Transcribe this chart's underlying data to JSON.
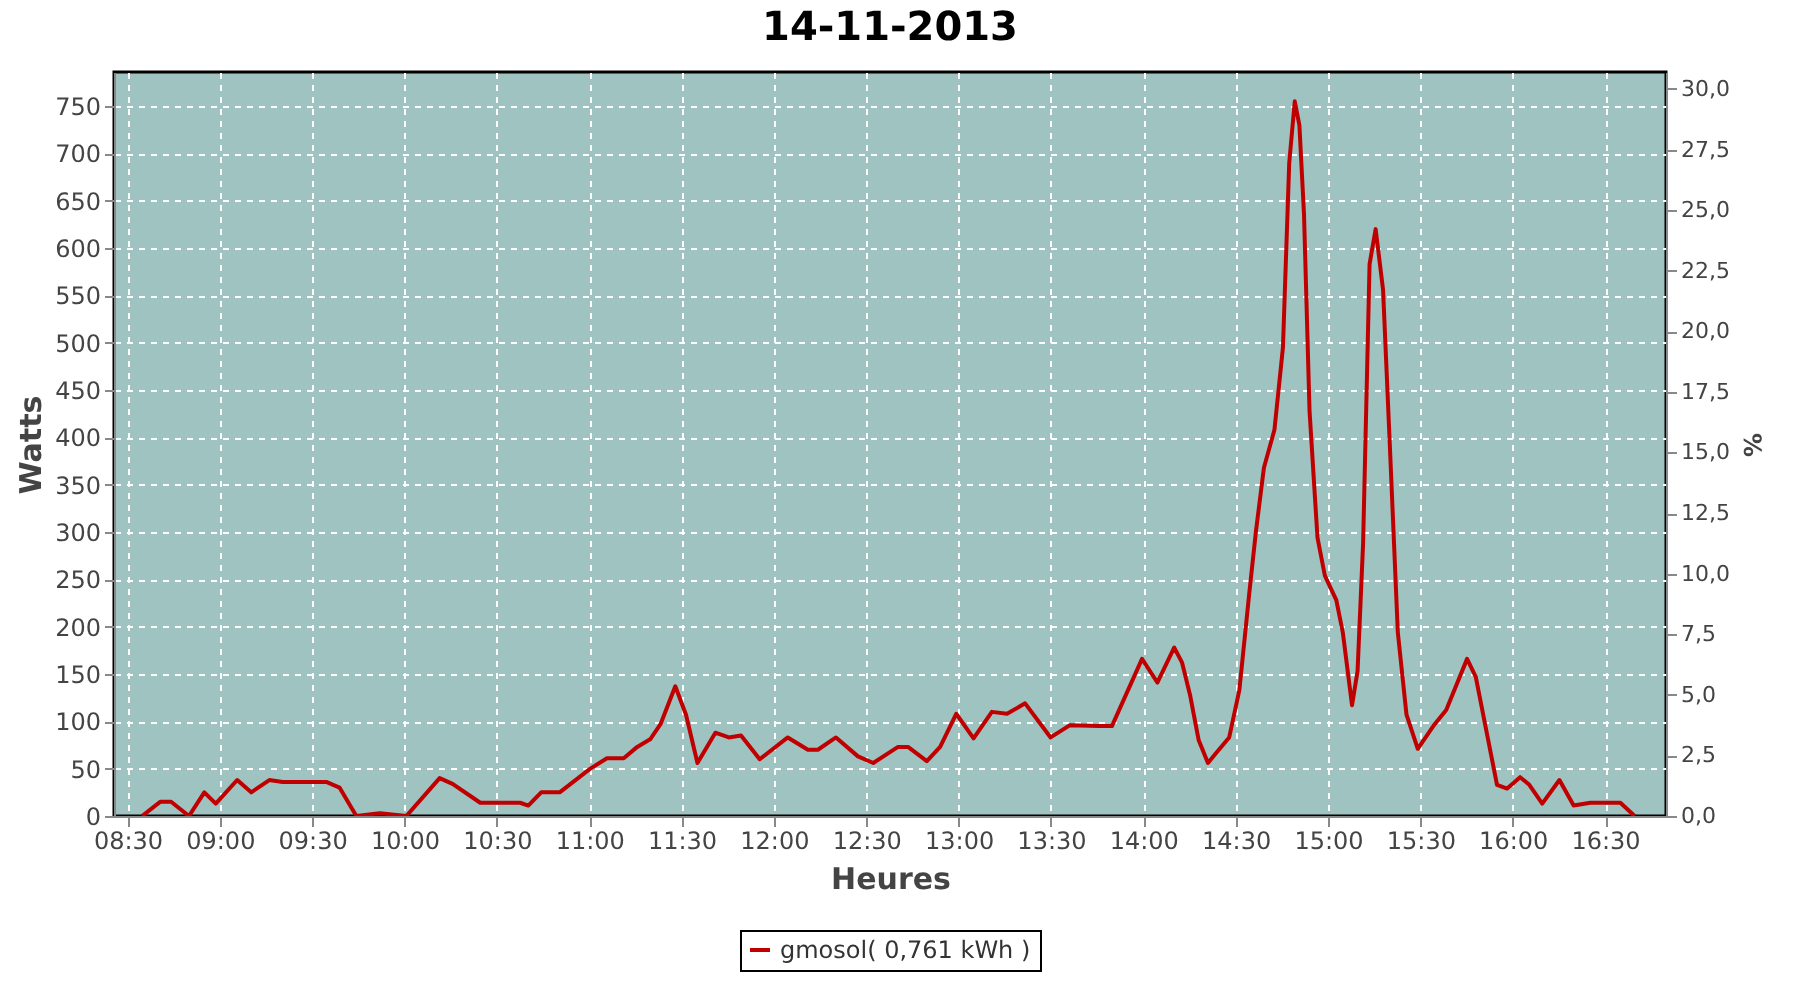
{
  "chart_data": {
    "type": "line",
    "title": "14-11-2013",
    "xlabel": "Heures",
    "ylabel": "Watts",
    "y2label": "%",
    "xlim": [
      8.427,
      16.83
    ],
    "xticks": [
      {
        "value": 8.5,
        "label": "08:30"
      },
      {
        "value": 9,
        "label": "09:00"
      },
      {
        "value": 9.5,
        "label": "09:30"
      },
      {
        "value": 10,
        "label": "10:00"
      },
      {
        "value": 10.5,
        "label": "10:30"
      },
      {
        "value": 11,
        "label": "11:00"
      },
      {
        "value": 11.5,
        "label": "11:30"
      },
      {
        "value": 12,
        "label": "12:00"
      },
      {
        "value": 12.5,
        "label": "12:30"
      },
      {
        "value": 13,
        "label": "13:00"
      },
      {
        "value": 13.5,
        "label": "13:30"
      },
      {
        "value": 14,
        "label": "14:00"
      },
      {
        "value": 14.5,
        "label": "14:30"
      },
      {
        "value": 15,
        "label": "15:00"
      },
      {
        "value": 15.5,
        "label": "15:30"
      },
      {
        "value": 16,
        "label": "16:00"
      },
      {
        "value": 16.5,
        "label": "16:30"
      }
    ],
    "ylim": [
      0,
      786
    ],
    "yticks": [
      0,
      50,
      100,
      150,
      200,
      250,
      300,
      350,
      400,
      450,
      500,
      550,
      600,
      650,
      700,
      750
    ],
    "y2lim": [
      0,
      30.7
    ],
    "y2ticks": [
      {
        "value": 0,
        "label": "0,0"
      },
      {
        "value": 2.5,
        "label": "2,5"
      },
      {
        "value": 5,
        "label": "5,0"
      },
      {
        "value": 7.5,
        "label": "7,5"
      },
      {
        "value": 10,
        "label": "10,0"
      },
      {
        "value": 12.5,
        "label": "12,5"
      },
      {
        "value": 15,
        "label": "15,0"
      },
      {
        "value": 17.5,
        "label": "17,5"
      },
      {
        "value": 20,
        "label": "20,0"
      },
      {
        "value": 22.5,
        "label": "22,5"
      },
      {
        "value": 25,
        "label": "25,0"
      },
      {
        "value": 27.5,
        "label": "27,5"
      },
      {
        "value": 30,
        "label": "30,0"
      }
    ],
    "grid": true,
    "legend": "bottom",
    "marker": "none",
    "line_style": "solid",
    "x": [
      8.579,
      8.677,
      8.736,
      8.833,
      8.916,
      8.978,
      9.094,
      9.17,
      9.268,
      9.34,
      9.576,
      9.648,
      9.739,
      9.866,
      10.01,
      10.19,
      10.26,
      10.41,
      10.626,
      10.67,
      10.74,
      10.84,
      11.006,
      11.096,
      11.187,
      11.26,
      11.33,
      11.386,
      11.466,
      11.524,
      11.586,
      11.683,
      11.756,
      11.822,
      11.923,
      12.075,
      12.184,
      12.238,
      12.336,
      12.455,
      12.538,
      12.672,
      12.726,
      12.828,
      12.9,
      12.987,
      13.081,
      13.18,
      13.262,
      13.36,
      13.498,
      13.603,
      13.759,
      13.83,
      13.993,
      14.076,
      14.167,
      14.21,
      14.254,
      14.3,
      14.35,
      14.392,
      14.465,
      14.52,
      14.573,
      14.61,
      14.653,
      14.71,
      14.756,
      14.79,
      14.82,
      14.845,
      14.87,
      14.9,
      14.943,
      14.983,
      15.045,
      15.08,
      15.13,
      15.16,
      15.19,
      15.225,
      15.258,
      15.298,
      15.334,
      15.378,
      15.425,
      15.486,
      15.57,
      15.64,
      15.753,
      15.8,
      15.915,
      15.97,
      16.04,
      16.09,
      16.16,
      16.253,
      16.33,
      16.42,
      16.583,
      16.66
    ],
    "series": [
      {
        "name": "gmosol( 0,761 kWh )",
        "color": "#c00000",
        "values": [
          0,
          15,
          15,
          0,
          25,
          13,
          38,
          25,
          38,
          36,
          36,
          30,
          0,
          3,
          0,
          40,
          34,
          14,
          14,
          11,
          25,
          25,
          50,
          61,
          61,
          73,
          81,
          97,
          137,
          107,
          56,
          88,
          83,
          85,
          60,
          83,
          70,
          70,
          83,
          63,
          56,
          73,
          73,
          58,
          73,
          108,
          82,
          110,
          108,
          119,
          83,
          96,
          95,
          95,
          166,
          141,
          178,
          162,
          127,
          80,
          56,
          66,
          83,
          133,
          234,
          301,
          368,
          408,
          495,
          690,
          755,
          730,
          636,
          428,
          294,
          254,
          228,
          194,
          117,
          153,
          288,
          583,
          620,
          556,
          395,
          194,
          107,
          71,
          95,
          112,
          166,
          147,
          33,
          29,
          41,
          33,
          13,
          38,
          11,
          14,
          14,
          0
        ]
      }
    ]
  }
}
